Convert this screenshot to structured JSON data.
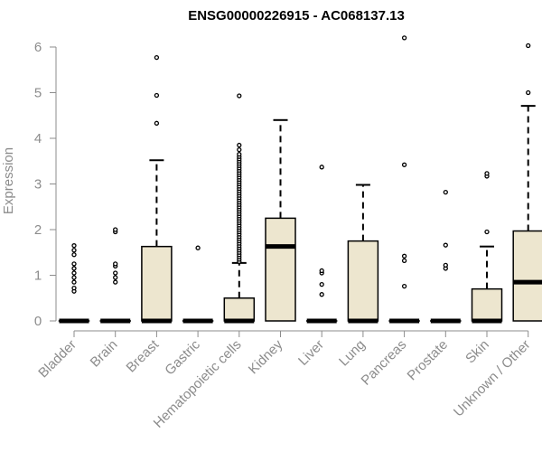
{
  "chart_data": {
    "type": "box",
    "title": "ENSG00000226915 - AC068137.13",
    "xlabel": "",
    "ylabel": "Expression",
    "ylim": [
      0,
      6.2
    ],
    "yticks": [
      0,
      1,
      2,
      3,
      4,
      5,
      6
    ],
    "grid": false,
    "colors": {
      "box_fill": "#ede6cf",
      "box_stroke": "#000000",
      "axis": "#8c8c8c"
    },
    "categories": [
      "Bladder",
      "Brain",
      "Breast",
      "Gastric",
      "Hematopoietic cells",
      "Kidney",
      "Liver",
      "Lung",
      "Pancreas",
      "Prostate",
      "Skin",
      "Unknown / Other"
    ],
    "boxes": [
      {
        "q1": 0,
        "median": 0,
        "q3": 0,
        "whisker_low": 0,
        "whisker_high": 0,
        "outliers": [
          0.65,
          0.72,
          0.85,
          0.95,
          1.05,
          1.15,
          1.25,
          1.45,
          1.55,
          1.65
        ]
      },
      {
        "q1": 0,
        "median": 0,
        "q3": 0,
        "whisker_low": 0,
        "whisker_high": 0,
        "outliers": [
          0.85,
          0.95,
          1.05,
          1.2,
          1.25,
          1.95,
          2.0
        ]
      },
      {
        "q1": 0,
        "median": 0,
        "q3": 1.63,
        "whisker_low": 0,
        "whisker_high": 3.52,
        "outliers": [
          4.33,
          4.94,
          5.77
        ]
      },
      {
        "q1": 0,
        "median": 0,
        "q3": 0,
        "whisker_low": 0,
        "whisker_high": 0,
        "outliers": [
          1.6
        ]
      },
      {
        "q1": 0,
        "median": 0,
        "q3": 0.5,
        "whisker_low": 0,
        "whisker_high": 1.27,
        "outliers": [
          1.3,
          1.35,
          1.4,
          1.45,
          1.5,
          1.55,
          1.6,
          1.65,
          1.7,
          1.75,
          1.8,
          1.85,
          1.9,
          1.95,
          2.0,
          2.05,
          2.1,
          2.15,
          2.2,
          2.25,
          2.3,
          2.35,
          2.4,
          2.45,
          2.5,
          2.55,
          2.6,
          2.65,
          2.7,
          2.75,
          2.8,
          2.85,
          2.9,
          2.95,
          3.0,
          3.05,
          3.1,
          3.15,
          3.2,
          3.25,
          3.3,
          3.35,
          3.4,
          3.45,
          3.5,
          3.55,
          3.6,
          3.65,
          3.75,
          3.85,
          4.93
        ]
      },
      {
        "q1": 0,
        "median": 1.63,
        "q3": 2.25,
        "whisker_low": 0,
        "whisker_high": 4.4,
        "outliers": []
      },
      {
        "q1": 0,
        "median": 0,
        "q3": 0,
        "whisker_low": 0,
        "whisker_high": 0,
        "outliers": [
          0.58,
          0.8,
          1.05,
          1.1,
          3.37
        ]
      },
      {
        "q1": 0,
        "median": 0,
        "q3": 1.75,
        "whisker_low": 0,
        "whisker_high": 2.98,
        "outliers": []
      },
      {
        "q1": 0,
        "median": 0,
        "q3": 0,
        "whisker_low": 0,
        "whisker_high": 0,
        "outliers": [
          0.76,
          1.32,
          1.42,
          3.42,
          6.2
        ]
      },
      {
        "q1": 0,
        "median": 0,
        "q3": 0,
        "whisker_low": 0,
        "whisker_high": 0,
        "outliers": [
          1.15,
          1.22,
          1.66,
          2.82
        ]
      },
      {
        "q1": 0,
        "median": 0,
        "q3": 0.7,
        "whisker_low": 0,
        "whisker_high": 1.63,
        "outliers": [
          1.95,
          3.17,
          3.23
        ]
      },
      {
        "q1": 0,
        "median": 0.85,
        "q3": 1.97,
        "whisker_low": 0,
        "whisker_high": 4.71,
        "outliers": [
          5.0,
          6.03
        ]
      }
    ]
  }
}
